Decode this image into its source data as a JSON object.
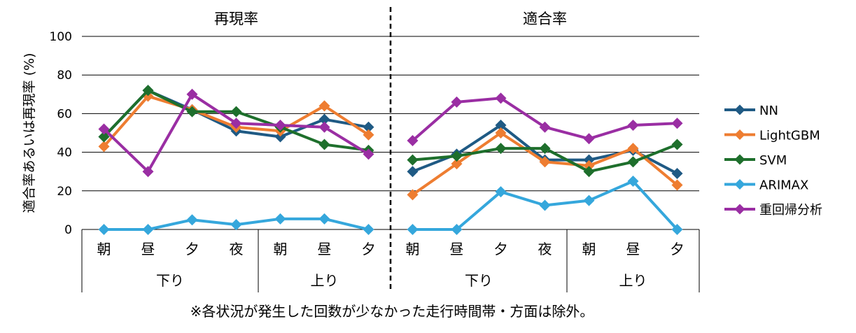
{
  "chart_data": {
    "type": "line",
    "ylabel": "適合率あるいは再現率 (%)",
    "ylim": [
      0,
      100
    ],
    "yticks": [
      0,
      20,
      40,
      60,
      80,
      100
    ],
    "grid": true,
    "legend_position": "right",
    "footnote": "※各状況が発生した回数が少なかった走行時間帯・方面は除外。",
    "panels": [
      {
        "title": "再現率",
        "categories": [
          "朝",
          "昼",
          "夕",
          "夜",
          "朝",
          "昼",
          "夕"
        ],
        "groups": [
          {
            "label": "下り",
            "count": 4
          },
          {
            "label": "上り",
            "count": 3
          }
        ],
        "series": [
          {
            "name": "NN",
            "color": "#1f5a84",
            "values": [
              48,
              72,
              62,
              51,
              48,
              57,
              53
            ]
          },
          {
            "name": "LightGBM",
            "color": "#ee7d31",
            "values": [
              43,
              69,
              62,
              53,
              51,
              64,
              49
            ]
          },
          {
            "name": "SVM",
            "color": "#1e6f2c",
            "values": [
              48,
              72,
              61,
              61,
              53,
              44,
              41
            ]
          },
          {
            "name": "ARIMAX",
            "color": "#35a7dc",
            "values": [
              0,
              0,
              5,
              2.5,
              5.5,
              5.5,
              0
            ]
          },
          {
            "name": "重回帰分析",
            "color": "#9a2ea3",
            "values": [
              52,
              30,
              70,
              55,
              54,
              53,
              39
            ]
          }
        ]
      },
      {
        "title": "適合率",
        "categories": [
          "朝",
          "昼",
          "夕",
          "夜",
          "朝",
          "昼",
          "夕"
        ],
        "groups": [
          {
            "label": "下り",
            "count": 4
          },
          {
            "label": "上り",
            "count": 3
          }
        ],
        "series": [
          {
            "name": "NN",
            "color": "#1f5a84",
            "values": [
              30,
              39,
              54,
              36,
              36,
              41,
              29
            ]
          },
          {
            "name": "LightGBM",
            "color": "#ee7d31",
            "values": [
              18,
              34,
              50,
              35,
              33,
              42,
              23
            ]
          },
          {
            "name": "SVM",
            "color": "#1e6f2c",
            "values": [
              36,
              38,
              42,
              42,
              30,
              35,
              44
            ]
          },
          {
            "name": "ARIMAX",
            "color": "#35a7dc",
            "values": [
              0,
              0,
              19.5,
              12.5,
              15,
              25,
              0
            ]
          },
          {
            "name": "重回帰分析",
            "color": "#9a2ea3",
            "values": [
              46,
              66,
              68,
              53,
              47,
              54,
              55
            ]
          }
        ]
      }
    ]
  }
}
